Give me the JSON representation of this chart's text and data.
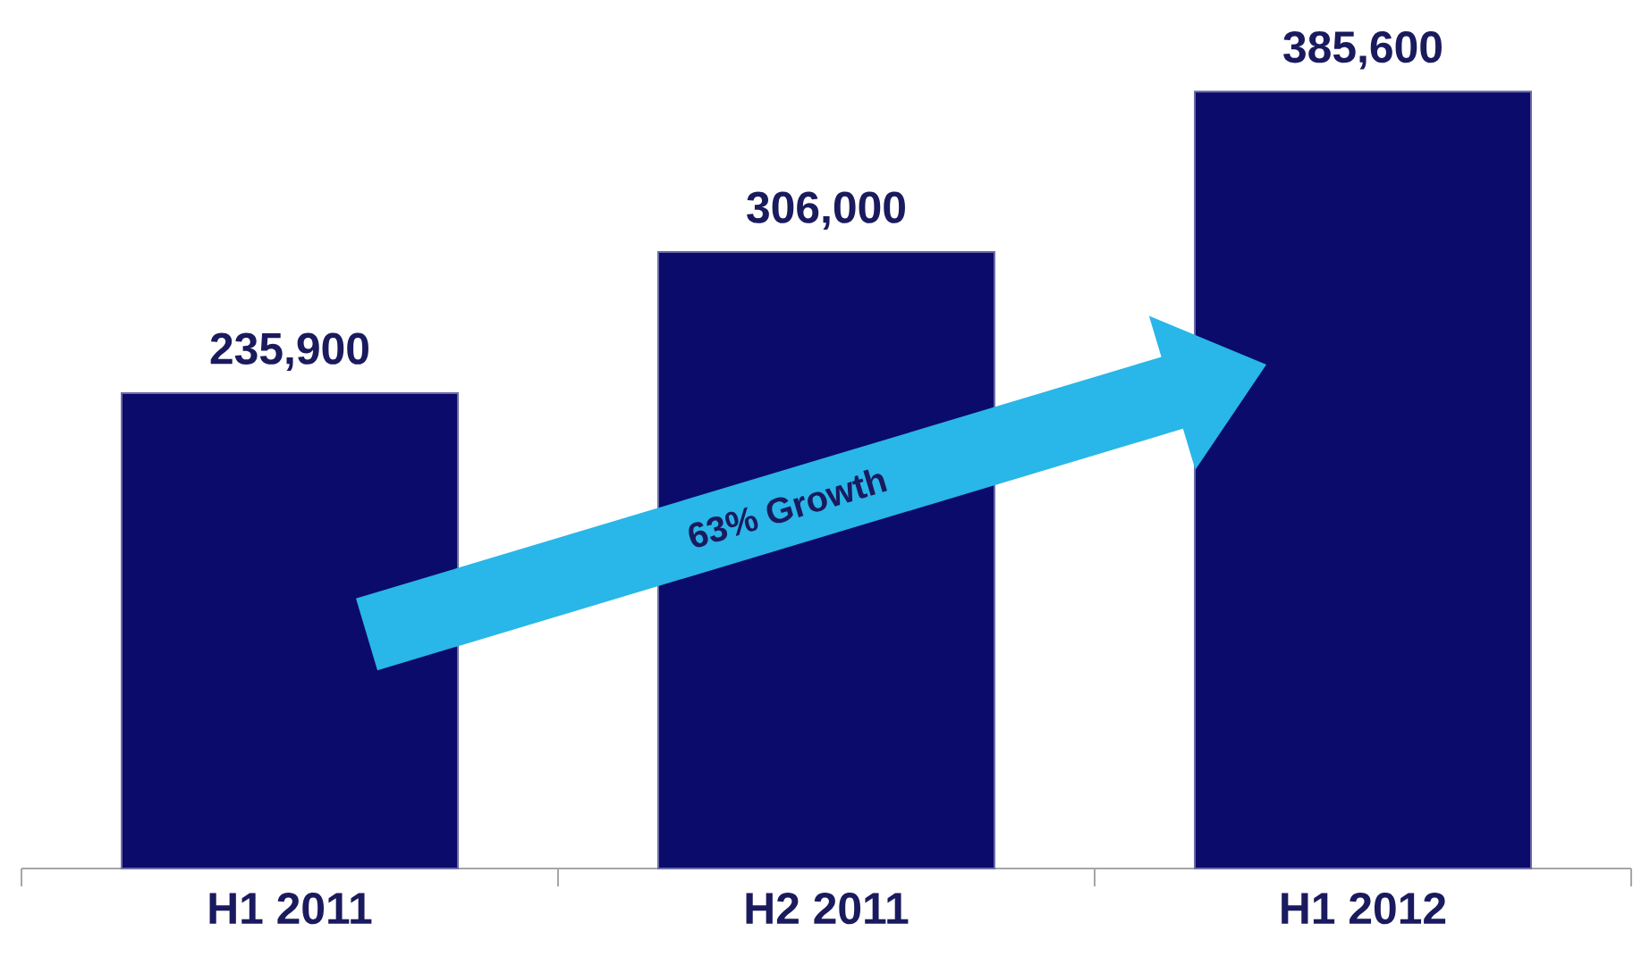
{
  "chart_data": {
    "type": "bar",
    "categories": [
      "H1 2011",
      "H2 2011",
      "H1 2012"
    ],
    "values": [
      235900,
      306000,
      385600
    ],
    "value_labels": [
      "235,900",
      "306,000",
      "385,600"
    ],
    "color": "#0b0b6b",
    "annotations": [
      "63% Growth"
    ]
  }
}
